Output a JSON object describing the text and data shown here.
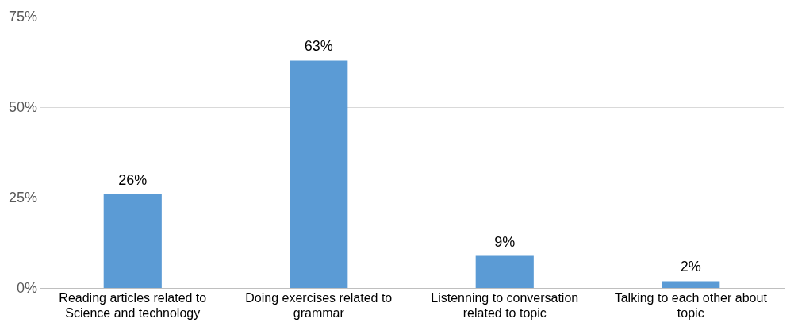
{
  "chart_data": {
    "type": "bar",
    "categories": [
      "Reading articles related to Science and technology",
      "Doing exercises related to grammar",
      "Listenning to conversation related to topic",
      "Talking to each other about topic"
    ],
    "values": [
      26,
      63,
      9,
      2
    ],
    "value_labels": [
      "26%",
      "63%",
      "9%",
      "2%"
    ],
    "color": "#5b9bd5",
    "ylim": [
      0,
      75
    ],
    "yticks": [
      {
        "value": 0,
        "label": "0%"
      },
      {
        "value": 25,
        "label": "25%"
      },
      {
        "value": 50,
        "label": "50%"
      },
      {
        "value": 75,
        "label": "75%"
      }
    ],
    "grid": "y",
    "legend": false
  }
}
